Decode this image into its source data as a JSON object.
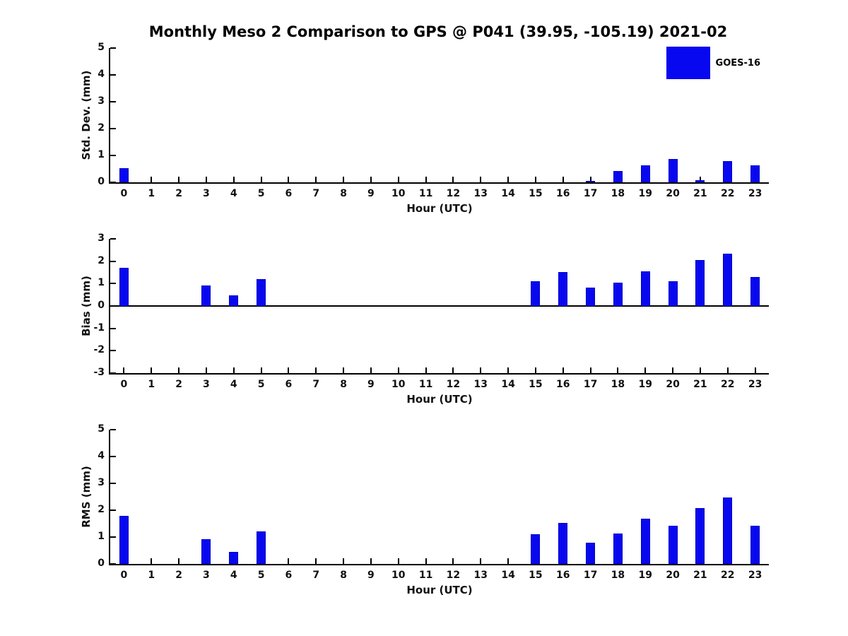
{
  "page": {
    "title": "Monthly Meso 2 Comparison to GPS @ P041 (39.95, -105.19) 2021-02"
  },
  "colors": {
    "bar": "#0808f0",
    "bar_edge": "#0000c8",
    "axis": "#000000",
    "text": "#111111"
  },
  "legend": {
    "label": "GOES-16",
    "position": "upper right"
  },
  "chart_data": [
    {
      "type": "bar",
      "name": "std-dev",
      "ylabel": "Std. Dev. (mm)",
      "xlabel": "Hour (UTC)",
      "categories": [
        "0",
        "1",
        "2",
        "3",
        "4",
        "5",
        "6",
        "7",
        "8",
        "9",
        "10",
        "11",
        "12",
        "13",
        "14",
        "15",
        "16",
        "17",
        "18",
        "19",
        "20",
        "21",
        "22",
        "23"
      ],
      "values": [
        0.52,
        0,
        0,
        0,
        0,
        0,
        0,
        0,
        0,
        0,
        0,
        0,
        0,
        0,
        0,
        0,
        0,
        0.05,
        0.42,
        0.63,
        0.88,
        0.08,
        0.8,
        0.63
      ],
      "ylim": [
        0,
        5
      ],
      "yticks": [
        0,
        1,
        2,
        3,
        4,
        5
      ],
      "zero_line": false,
      "grid": false,
      "legend_entry": "GOES-16"
    },
    {
      "type": "bar",
      "name": "bias",
      "ylabel": "Bias (mm)",
      "xlabel": "Hour (UTC)",
      "categories": [
        "0",
        "1",
        "2",
        "3",
        "4",
        "5",
        "6",
        "7",
        "8",
        "9",
        "10",
        "11",
        "12",
        "13",
        "14",
        "15",
        "16",
        "17",
        "18",
        "19",
        "20",
        "21",
        "22",
        "23"
      ],
      "values": [
        1.7,
        0,
        0,
        0.92,
        0.48,
        1.2,
        0,
        0,
        0,
        0,
        0,
        0,
        0,
        0,
        0,
        1.12,
        1.52,
        0.82,
        1.05,
        1.55,
        1.12,
        2.05,
        2.35,
        1.3
      ],
      "ylim": [
        -3,
        3
      ],
      "yticks": [
        3,
        2,
        1,
        0,
        -1,
        -2,
        -3
      ],
      "zero_line": true,
      "grid": false,
      "legend_entry": "GOES-16"
    },
    {
      "type": "bar",
      "name": "rms",
      "ylabel": "RMS (mm)",
      "xlabel": "Hour (UTC)",
      "categories": [
        "0",
        "1",
        "2",
        "3",
        "4",
        "5",
        "6",
        "7",
        "8",
        "9",
        "10",
        "11",
        "12",
        "13",
        "14",
        "15",
        "16",
        "17",
        "18",
        "19",
        "20",
        "21",
        "22",
        "23"
      ],
      "values": [
        1.78,
        0,
        0,
        0.92,
        0.46,
        1.2,
        0,
        0,
        0,
        0,
        0,
        0,
        0,
        0,
        0,
        1.1,
        1.52,
        0.8,
        1.13,
        1.68,
        1.42,
        2.07,
        2.48,
        1.43
      ],
      "ylim": [
        0,
        5
      ],
      "yticks": [
        0,
        1,
        2,
        3,
        4,
        5
      ],
      "zero_line": false,
      "grid": false,
      "legend_entry": "GOES-16"
    }
  ]
}
